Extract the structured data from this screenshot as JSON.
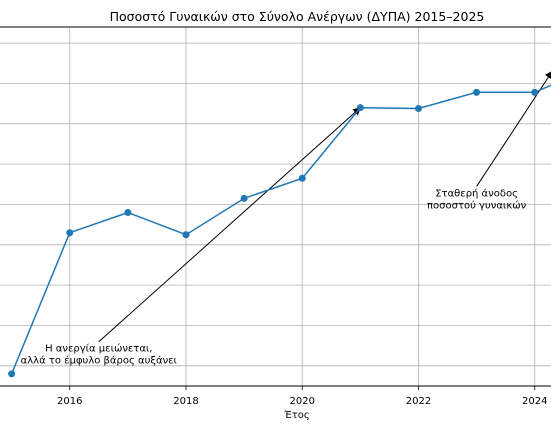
{
  "chart_data": {
    "type": "line",
    "title": "Ποσοστό Γυναικών στο Σύνολο Ανέργων (ΔΥΠΑ) 2015–2025",
    "xlabel": "Έτος",
    "ylabel": "",
    "xlim": [
      2014.8,
      2024.28
    ],
    "ylim": [
      57.5,
      66.4
    ],
    "grid": true,
    "x_ticks": [
      2016,
      2018,
      2020,
      2022,
      2024
    ],
    "x_tick_labels": [
      "2016",
      "2018",
      "2020",
      "2022",
      "2024"
    ],
    "y_gridlines": [
      58,
      59,
      60,
      61,
      62,
      63,
      64,
      65,
      66
    ],
    "series": [
      {
        "color": "#1f77b4",
        "x": [
          2015,
          2016,
          2017,
          2018,
          2019,
          2020,
          2021,
          2022,
          2023,
          2024,
          2025
        ],
        "y": [
          57.8,
          61.3,
          61.8,
          61.25,
          62.15,
          62.65,
          64.4,
          64.38,
          64.78,
          64.78,
          65.4
        ]
      }
    ],
    "annotations": [
      {
        "lines": [
          "Η ανεργία μειώνεται,",
          "αλλά το έμφυλο βάρος αυξάνει"
        ],
        "text_x": 2016.5,
        "text_y": 58.35,
        "arrow_to": [
          2021,
          64.4
        ]
      },
      {
        "lines": [
          "Σταθερή άνοδος",
          "ποσοστού γυναικών"
        ],
        "text_x": 2023.0,
        "text_y": 62.2,
        "arrow_to": [
          2024.3,
          65.3
        ]
      }
    ]
  }
}
